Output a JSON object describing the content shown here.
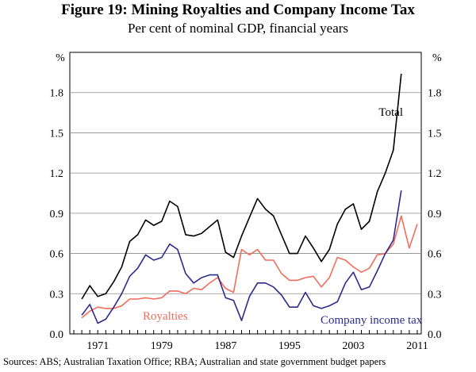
{
  "chart_data": {
    "type": "line",
    "title": "Figure 19: Mining Royalties and Company Income Tax",
    "subtitle": "Per cent of nominal GDP, financial years",
    "ylabel_left": "%",
    "ylabel_right": "%",
    "ylim": [
      0,
      2.1
    ],
    "yticks": [
      0.0,
      0.3,
      0.6,
      0.9,
      1.2,
      1.5,
      1.8
    ],
    "ytick_labels": [
      "0.0",
      "0.3",
      "0.6",
      "0.9",
      "1.2",
      "1.5",
      "1.8"
    ],
    "xlim": [
      1967.5,
      2011.5
    ],
    "xticks": [
      1971,
      1979,
      1987,
      1995,
      2003,
      2011
    ],
    "xtick_labels": [
      "1971",
      "1979",
      "1987",
      "1995",
      "2003",
      "2011"
    ],
    "x": [
      1969,
      1970,
      1971,
      1972,
      1973,
      1974,
      1975,
      1976,
      1977,
      1978,
      1979,
      1980,
      1981,
      1982,
      1983,
      1984,
      1985,
      1986,
      1987,
      1988,
      1989,
      1990,
      1991,
      1992,
      1993,
      1994,
      1995,
      1996,
      1997,
      1998,
      1999,
      2000,
      2001,
      2002,
      2003,
      2004,
      2005,
      2006,
      2007,
      2008,
      2009,
      2010,
      2011
    ],
    "series": [
      {
        "name": "Total",
        "label": "Total",
        "color": "#000000",
        "values": [
          0.26,
          0.36,
          0.28,
          0.3,
          0.39,
          0.5,
          0.69,
          0.74,
          0.85,
          0.81,
          0.84,
          0.99,
          0.95,
          0.74,
          0.73,
          0.75,
          0.8,
          0.85,
          0.61,
          0.57,
          0.73,
          0.87,
          1.01,
          0.93,
          0.88,
          0.74,
          0.6,
          0.6,
          0.73,
          0.64,
          0.54,
          0.63,
          0.82,
          0.93,
          0.97,
          0.78,
          0.84,
          1.06,
          1.2,
          1.37,
          1.94,
          null,
          null
        ]
      },
      {
        "name": "Royalties",
        "label": "Royalties",
        "color": "#f26d5b",
        "values": [
          0.12,
          0.17,
          0.2,
          0.19,
          0.19,
          0.21,
          0.26,
          0.26,
          0.27,
          0.26,
          0.27,
          0.32,
          0.32,
          0.3,
          0.34,
          0.33,
          0.38,
          0.42,
          0.34,
          0.31,
          0.63,
          0.59,
          0.63,
          0.55,
          0.55,
          0.45,
          0.4,
          0.4,
          0.42,
          0.43,
          0.35,
          0.42,
          0.57,
          0.55,
          0.5,
          0.46,
          0.49,
          0.59,
          0.6,
          0.67,
          0.88,
          0.64,
          0.82
        ]
      },
      {
        "name": "Company income tax",
        "label": "Company income tax",
        "color": "#2d2a8c",
        "values": [
          0.14,
          0.22,
          0.08,
          0.11,
          0.2,
          0.3,
          0.43,
          0.49,
          0.59,
          0.55,
          0.57,
          0.67,
          0.63,
          0.45,
          0.38,
          0.42,
          0.44,
          0.44,
          0.27,
          0.25,
          0.1,
          0.28,
          0.38,
          0.38,
          0.35,
          0.29,
          0.2,
          0.2,
          0.31,
          0.21,
          0.19,
          0.21,
          0.24,
          0.38,
          0.46,
          0.33,
          0.35,
          0.47,
          0.6,
          0.7,
          1.07,
          null,
          null
        ]
      }
    ]
  },
  "source_note": "Sources:  ABS; Australian Taxation Office; RBA; Australian and state government budget papers"
}
